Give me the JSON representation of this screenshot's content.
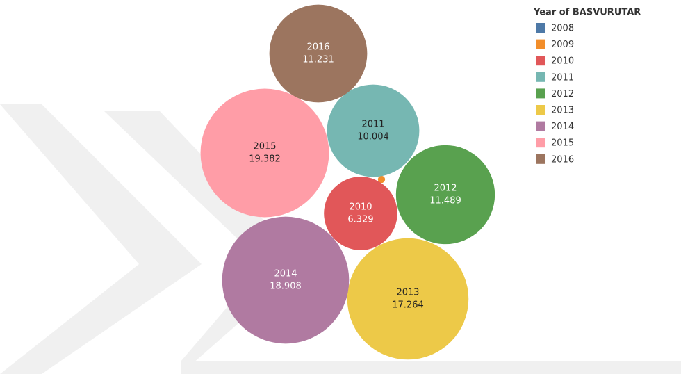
{
  "chart_data": {
    "type": "bubble",
    "legend_title": "Year of BASVURUTAR",
    "categories": [
      "2008",
      "2009",
      "2010",
      "2011",
      "2012",
      "2013",
      "2014",
      "2015",
      "2016"
    ],
    "values": [
      null,
      0.06,
      6.329,
      10.004,
      11.489,
      17.264,
      18.908,
      19.382,
      11.231
    ],
    "colors": [
      "#4e79a7",
      "#f28e2b",
      "#e15759",
      "#76b7b2",
      "#59a14f",
      "#edc948",
      "#b07aa1",
      "#ff9da7",
      "#9c755f"
    ]
  }
}
